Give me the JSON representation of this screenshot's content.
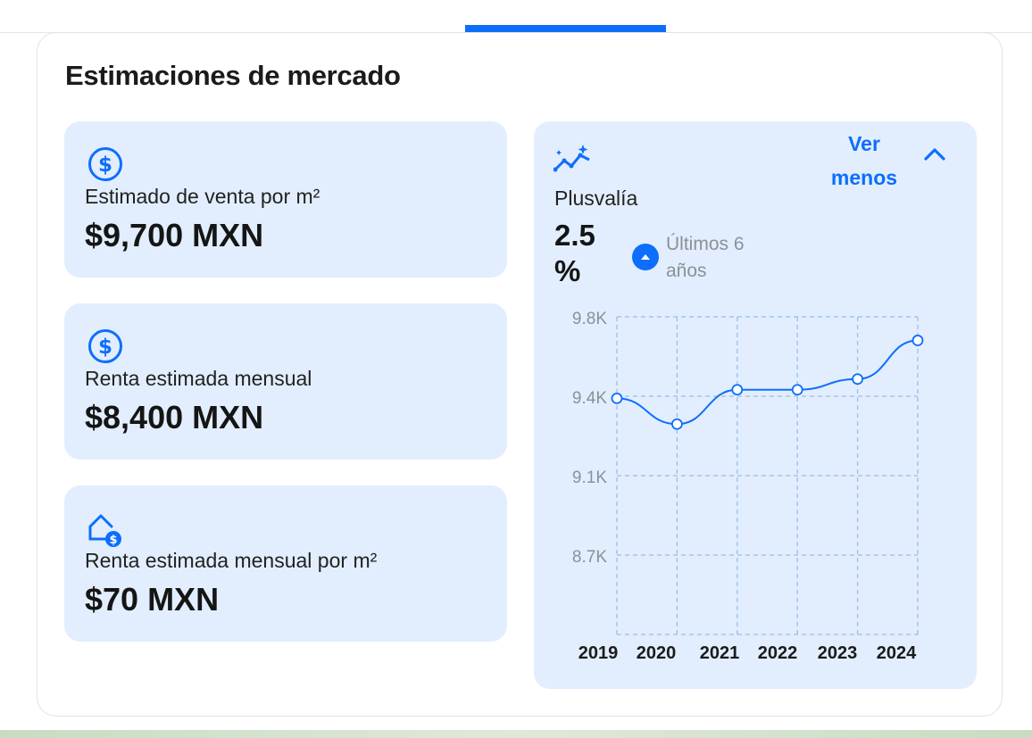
{
  "section": {
    "title": "Estimaciones de mercado"
  },
  "stats": [
    {
      "icon": "dollar-circle-icon",
      "label": "Estimado de venta por m²",
      "value": "$9,700 MXN"
    },
    {
      "icon": "dollar-circle-icon",
      "label": "Renta estimada mensual",
      "value": "$8,400 MXN"
    },
    {
      "icon": "house-dollar-icon",
      "label": "Renta estimada mensual por m²",
      "value": "$70 MXN"
    }
  ],
  "plusvalia": {
    "icon": "sparkle-trend-icon",
    "toggle_label": "Ver menos",
    "label": "Plusvalía",
    "value": "2.5 %",
    "period": "Últimos 6 años",
    "trend_icon": "arrow-up-icon"
  },
  "colors": {
    "accent": "#0d6efd",
    "card_bg": "#e2eefd",
    "muted": "#8c9098"
  },
  "chart_data": {
    "type": "line",
    "x": [
      "2019",
      "2020",
      "2021",
      "2022",
      "2023",
      "2024"
    ],
    "y_ticks": [
      "9.8K",
      "9.4K",
      "9.1K",
      "8.7K"
    ],
    "series": [
      {
        "values": [
          9420,
          9300,
          9460,
          9460,
          9510,
          9690
        ]
      }
    ],
    "ylim": [
      8320,
      9800
    ],
    "grid": true
  }
}
